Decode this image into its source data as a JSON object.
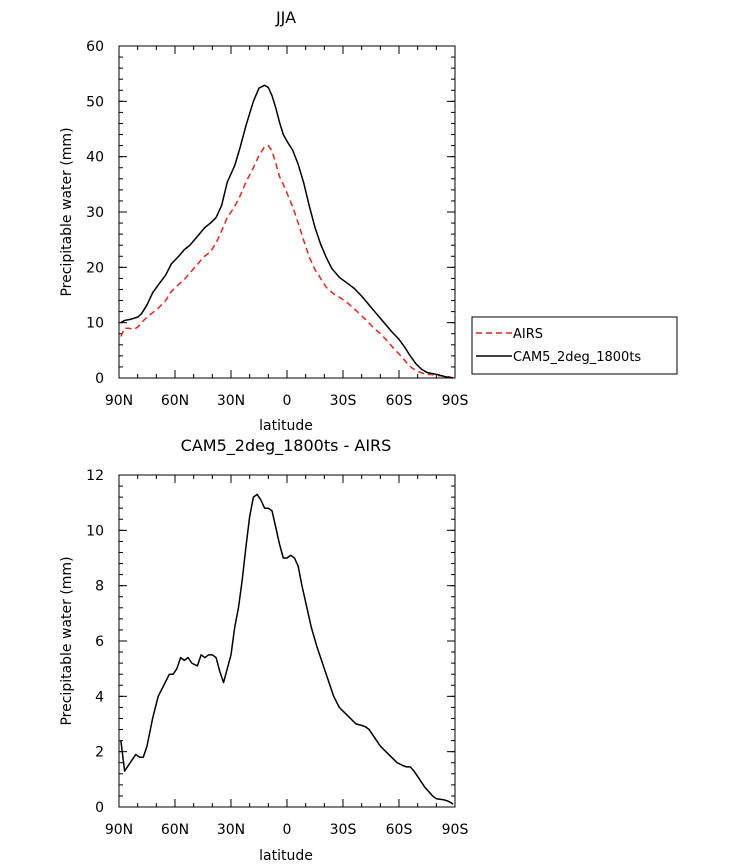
{
  "chart_data": [
    {
      "type": "line",
      "title": "JJA",
      "xlabel": "latitude",
      "ylabel": "Precipitable water (mm)",
      "xlim": [
        90,
        -90
      ],
      "ylim": [
        0,
        60
      ],
      "x_ticks": [
        90,
        60,
        30,
        0,
        -30,
        -60,
        -90
      ],
      "x_tick_labels": [
        "90N",
        "60N",
        "30N",
        "0",
        "30S",
        "60S",
        "90S"
      ],
      "y_ticks": [
        0,
        10,
        20,
        30,
        40,
        50,
        60
      ],
      "y_tick_labels": [
        "0",
        "10",
        "20",
        "30",
        "40",
        "50",
        "60"
      ],
      "legend": "right",
      "series": [
        {
          "name": "AIRS",
          "color": "#e8221b",
          "dash": "dashed",
          "x": [
            89,
            87,
            85,
            82,
            80,
            78,
            75,
            72,
            69,
            65,
            62,
            59,
            55,
            52,
            48,
            45,
            41,
            38,
            35,
            32,
            28,
            25,
            22,
            18,
            15,
            12,
            10,
            8,
            6,
            4,
            2,
            0,
            -3,
            -6,
            -9,
            -12,
            -15,
            -18,
            -21,
            -25,
            -29,
            -33,
            -37,
            -42,
            -46,
            -50,
            -54,
            -57,
            -61,
            -64,
            -67,
            -70,
            -74,
            -78,
            -82,
            -85,
            -87,
            -89
          ],
          "y": [
            7.5,
            9.0,
            9.0,
            8.8,
            9.2,
            10.0,
            11.0,
            11.8,
            12.6,
            14.0,
            15.6,
            16.6,
            17.8,
            19.0,
            20.5,
            21.8,
            22.8,
            24.4,
            26.6,
            29.0,
            31.0,
            33.0,
            35.4,
            38.0,
            40.2,
            41.8,
            42.0,
            41.0,
            38.8,
            36.4,
            35.0,
            33.4,
            31.0,
            28.0,
            24.8,
            21.8,
            19.6,
            18.0,
            16.4,
            15.2,
            14.4,
            13.4,
            12.2,
            10.6,
            9.2,
            8.0,
            6.6,
            5.4,
            4.0,
            2.8,
            1.8,
            1.2,
            0.7,
            0.6,
            0.4,
            0.3,
            0.2,
            0.0
          ]
        },
        {
          "name": "CAM5_2deg_1800ts",
          "color": "#000000",
          "dash": "solid",
          "x": [
            89,
            87,
            84,
            82,
            80,
            78,
            75,
            72,
            69,
            65,
            62,
            58,
            55,
            52,
            48,
            44,
            41,
            38,
            35,
            32,
            28,
            25,
            22,
            18,
            15,
            12,
            10,
            8,
            6,
            4,
            2,
            0,
            -3,
            -6,
            -9,
            -12,
            -15,
            -18,
            -21,
            -24,
            -28,
            -32,
            -36,
            -40,
            -44,
            -48,
            -52,
            -56,
            -60,
            -63,
            -66,
            -69,
            -72,
            -75,
            -78,
            -81,
            -84,
            -87,
            -89
          ],
          "y": [
            10.0,
            10.4,
            10.6,
            10.8,
            11.0,
            11.6,
            13.2,
            15.4,
            16.8,
            18.6,
            20.6,
            22.0,
            23.2,
            24.0,
            25.6,
            27.2,
            28.0,
            29.0,
            31.2,
            35.4,
            38.4,
            41.8,
            45.6,
            50.0,
            52.4,
            52.9,
            52.5,
            51.0,
            48.8,
            46.2,
            44.0,
            42.8,
            41.2,
            38.6,
            35.2,
            31.0,
            27.2,
            24.2,
            21.8,
            19.8,
            18.2,
            17.2,
            16.2,
            14.8,
            13.2,
            11.6,
            10.0,
            8.4,
            7.0,
            5.6,
            4.0,
            2.6,
            1.6,
            1.0,
            0.8,
            0.6,
            0.3,
            0.1,
            0.0
          ]
        }
      ]
    },
    {
      "type": "line",
      "title": "CAM5_2deg_1800ts - AIRS",
      "xlabel": "latitude",
      "ylabel": "Precipitable water (mm)",
      "xlim": [
        90,
        -90
      ],
      "ylim": [
        0,
        12
      ],
      "x_ticks": [
        90,
        60,
        30,
        0,
        -30,
        -60,
        -90
      ],
      "x_tick_labels": [
        "90N",
        "60N",
        "30N",
        "0",
        "30S",
        "60S",
        "90S"
      ],
      "y_ticks": [
        0,
        2,
        4,
        6,
        8,
        10,
        12
      ],
      "y_tick_labels": [
        "0",
        "2",
        "4",
        "6",
        "8",
        "10",
        "12"
      ],
      "series": [
        {
          "color": "#000000",
          "dash": "solid",
          "x": [
            89,
            87,
            84,
            81,
            79,
            77,
            75,
            72,
            69,
            66,
            63,
            61,
            59,
            57,
            55,
            53,
            51,
            48,
            46,
            44,
            42,
            40,
            38,
            36,
            34,
            32,
            30,
            28,
            26,
            24,
            22,
            20,
            18,
            16,
            14,
            12,
            10,
            8,
            6,
            4,
            2,
            0,
            -2,
            -4,
            -6,
            -8,
            -10,
            -13,
            -16,
            -19,
            -22,
            -25,
            -28,
            -31,
            -34,
            -37,
            -40,
            -42,
            -44,
            -46,
            -48,
            -50,
            -53,
            -56,
            -59,
            -62,
            -64,
            -66,
            -68,
            -70,
            -72,
            -74,
            -76,
            -78,
            -80,
            -82,
            -84,
            -86,
            -88,
            -89
          ],
          "y": [
            2.4,
            1.3,
            1.6,
            1.9,
            1.8,
            1.8,
            2.2,
            3.2,
            4.0,
            4.4,
            4.8,
            4.8,
            5.0,
            5.4,
            5.3,
            5.4,
            5.2,
            5.1,
            5.5,
            5.4,
            5.5,
            5.5,
            5.4,
            4.9,
            4.5,
            5.0,
            5.5,
            6.5,
            7.2,
            8.2,
            9.4,
            10.5,
            11.2,
            11.3,
            11.1,
            10.8,
            10.8,
            10.7,
            10.1,
            9.5,
            9.0,
            9.0,
            9.1,
            9.0,
            8.7,
            8.0,
            7.4,
            6.5,
            5.8,
            5.2,
            4.6,
            4.0,
            3.6,
            3.4,
            3.2,
            3.0,
            2.95,
            2.9,
            2.8,
            2.6,
            2.4,
            2.2,
            2.0,
            1.8,
            1.6,
            1.5,
            1.45,
            1.45,
            1.3,
            1.1,
            0.9,
            0.7,
            0.55,
            0.4,
            0.3,
            0.28,
            0.26,
            0.22,
            0.15,
            0.1
          ]
        }
      ]
    }
  ]
}
